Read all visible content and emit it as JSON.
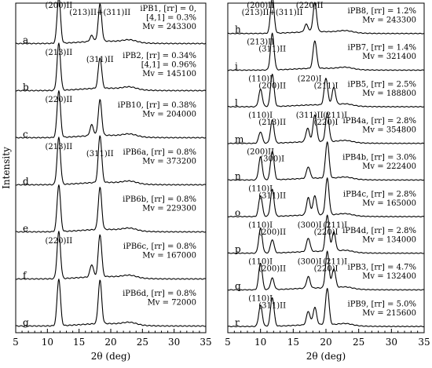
{
  "chart_data": [
    {
      "type": "line",
      "panel": "left",
      "xlabel": "2θ (deg)",
      "ylabel": "Intensity",
      "xlim": [
        5,
        35
      ],
      "xticks": [
        5,
        10,
        15,
        20,
        25,
        30,
        35
      ],
      "grid": false,
      "traces": [
        {
          "letter": "a",
          "name": "iPB1",
          "lines": [
            "iPB1, [rr] = 0,",
            "[4,1] = 0.3%",
            "Mv = 243300"
          ],
          "peaks": [
            {
              "x": 11.8,
              "h": 0.95
            },
            {
              "x": 17.0,
              "h": 0.12
            },
            {
              "x": 18.3,
              "h": 0.75
            }
          ],
          "labels": [
            "(200)II",
            "(213)II+(311)II"
          ]
        },
        {
          "letter": "b",
          "name": "iPB2",
          "lines": [
            "iPB2, [rr] = 0.34%",
            "[4,1] = 0.96%",
            "Mv = 145100"
          ],
          "peaks": [
            {
              "x": 11.8,
              "h": 0.95
            },
            {
              "x": 18.3,
              "h": 0.62
            }
          ],
          "labels": [
            "(213)II",
            "(311)II"
          ]
        },
        {
          "letter": "c",
          "name": "iPB10",
          "lines": [
            "iPB10, [rr] = 0.38%",
            "Mv = 204000"
          ],
          "peaks": [
            {
              "x": 11.8,
              "h": 0.95
            },
            {
              "x": 17.0,
              "h": 0.22
            },
            {
              "x": 18.3,
              "h": 0.72
            }
          ],
          "labels": [
            "(220)II"
          ]
        },
        {
          "letter": "d",
          "name": "iPB6a",
          "lines": [
            "iPB6a, [rr] = 0.8%",
            "Mv = 373200"
          ],
          "peaks": [
            {
              "x": 11.8,
              "h": 0.95
            },
            {
              "x": 18.3,
              "h": 0.95
            }
          ],
          "labels": [
            "(213)II",
            "(311)II"
          ]
        },
        {
          "letter": "e",
          "name": "iPB6b",
          "lines": [
            "iPB6b, [rr] = 0.8%",
            "Mv = 229300"
          ],
          "peaks": [
            {
              "x": 11.8,
              "h": 0.95
            },
            {
              "x": 18.3,
              "h": 0.85
            }
          ],
          "labels": []
        },
        {
          "letter": "f",
          "name": "iPB6c",
          "lines": [
            "iPB6c, [rr] = 0.8%",
            "Mv = 167000"
          ],
          "peaks": [
            {
              "x": 11.8,
              "h": 0.95
            },
            {
              "x": 17.0,
              "h": 0.25
            },
            {
              "x": 18.3,
              "h": 0.85
            }
          ],
          "labels": [
            "(220)II"
          ]
        },
        {
          "letter": "g",
          "name": "iPB6d",
          "lines": [
            "iPB6d, [rr] = 0.8%",
            "Mv = 72000"
          ],
          "peaks": [
            {
              "x": 11.8,
              "h": 0.95
            },
            {
              "x": 18.3,
              "h": 0.88
            }
          ],
          "labels": []
        }
      ]
    },
    {
      "type": "line",
      "panel": "right",
      "xlabel": "2θ (deg)",
      "ylabel": "",
      "xlim": [
        5,
        35
      ],
      "xticks": [
        5,
        10,
        15,
        20,
        25,
        30,
        35
      ],
      "grid": false,
      "traces": [
        {
          "letter": "h",
          "name": "iPB8",
          "lines": [
            "iPB8, [rr] = 1.2%",
            "Mv = 243300"
          ],
          "peaks": [
            {
              "x": 11.8,
              "h": 0.95
            },
            {
              "x": 17.0,
              "h": 0.2
            },
            {
              "x": 18.3,
              "h": 0.75
            }
          ],
          "labels": [
            "(200)II",
            "(213)II+(311)II",
            "(220)II"
          ]
        },
        {
          "letter": "i",
          "name": "iPB7",
          "lines": [
            "iPB7, [rr] = 1.4%",
            "Mv = 321400"
          ],
          "peaks": [
            {
              "x": 11.8,
              "h": 0.95
            },
            {
              "x": 18.3,
              "h": 0.72
            }
          ],
          "labels": [
            "(213)II",
            "(311)II"
          ]
        },
        {
          "letter": "l",
          "name": "iPB5",
          "lines": [
            "iPB5, [rr] = 2.5%",
            "Mv = 188800"
          ],
          "peaks": [
            {
              "x": 10.0,
              "h": 0.45
            },
            {
              "x": 11.8,
              "h": 0.85
            },
            {
              "x": 20.0,
              "h": 0.7
            },
            {
              "x": 21.2,
              "h": 0.45
            }
          ],
          "labels": [
            "(110)I",
            "(200)II",
            "(220)I",
            "(211)I"
          ]
        },
        {
          "letter": "m",
          "name": "iPB4a",
          "lines": [
            "iPB4a, [rr] = 2.8%",
            "Mv = 354800"
          ],
          "peaks": [
            {
              "x": 10.0,
              "h": 0.3
            },
            {
              "x": 11.8,
              "h": 0.6
            },
            {
              "x": 17.2,
              "h": 0.35
            },
            {
              "x": 18.3,
              "h": 0.7
            },
            {
              "x": 20.2,
              "h": 0.75
            }
          ],
          "labels": [
            "(110)I",
            "(213)II",
            "(311)II",
            "(220)I",
            "(211)I"
          ]
        },
        {
          "letter": "n",
          "name": "iPB4b",
          "lines": [
            "iPB4b, [rr] = 3.0%",
            "Mv = 222400"
          ],
          "peaks": [
            {
              "x": 10.0,
              "h": 0.6
            },
            {
              "x": 11.8,
              "h": 0.75
            },
            {
              "x": 17.3,
              "h": 0.3
            },
            {
              "x": 20.2,
              "h": 0.95
            }
          ],
          "labels": [
            "(200)II",
            "(300)I"
          ]
        },
        {
          "letter": "o",
          "name": "iPB4c",
          "lines": [
            "iPB4c, [rr] = 2.8%",
            "Mv = 165000"
          ],
          "peaks": [
            {
              "x": 10.0,
              "h": 0.55
            },
            {
              "x": 11.8,
              "h": 0.7
            },
            {
              "x": 17.3,
              "h": 0.45
            },
            {
              "x": 18.3,
              "h": 0.5
            },
            {
              "x": 20.2,
              "h": 0.95
            }
          ],
          "labels": [
            "(110)I",
            "(311)II"
          ]
        },
        {
          "letter": "p",
          "name": "iPB4d",
          "lines": [
            "iPB4d, [rr] = 2.8%",
            "Mv = 134000"
          ],
          "peaks": [
            {
              "x": 10.0,
              "h": 0.65
            },
            {
              "x": 11.8,
              "h": 0.35
            },
            {
              "x": 17.3,
              "h": 0.35
            },
            {
              "x": 20.2,
              "h": 0.95
            },
            {
              "x": 21.2,
              "h": 0.5
            }
          ],
          "labels": [
            "(110)I",
            "(200)II",
            "(300)I",
            "(220)I",
            "(211)I"
          ]
        },
        {
          "letter": "q",
          "name": "iPB3",
          "lines": [
            "iPB3, [rr] = 4.7%",
            "Mv = 132400"
          ],
          "peaks": [
            {
              "x": 10.0,
              "h": 0.7
            },
            {
              "x": 11.8,
              "h": 0.3
            },
            {
              "x": 17.3,
              "h": 0.3
            },
            {
              "x": 20.2,
              "h": 0.95
            },
            {
              "x": 21.2,
              "h": 0.5
            }
          ],
          "labels": [
            "(110)I",
            "(200)II",
            "(300)I",
            "(220)I",
            "(211)I"
          ]
        },
        {
          "letter": "r",
          "name": "iPB9",
          "lines": [
            "iPB9, [rr] = 5.0%",
            "Mv = 215600"
          ],
          "peaks": [
            {
              "x": 10.0,
              "h": 0.55
            },
            {
              "x": 11.8,
              "h": 0.75
            },
            {
              "x": 17.3,
              "h": 0.35
            },
            {
              "x": 18.3,
              "h": 0.45
            },
            {
              "x": 20.2,
              "h": 0.95
            }
          ],
          "labels": [
            "(110)I",
            "(311)II"
          ]
        }
      ]
    }
  ]
}
